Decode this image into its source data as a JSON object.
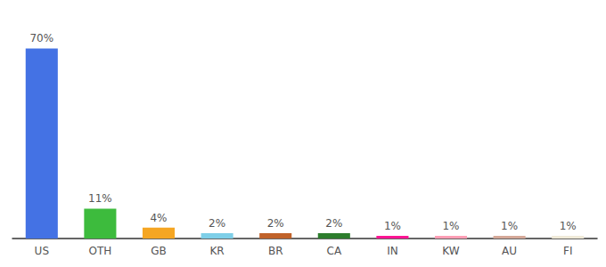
{
  "chart_data": {
    "type": "bar",
    "categories": [
      "US",
      "OTH",
      "GB",
      "KR",
      "BR",
      "CA",
      "IN",
      "KW",
      "AU",
      "FI"
    ],
    "values": [
      70,
      11,
      4,
      2,
      2,
      2,
      1,
      1,
      1,
      1
    ],
    "value_labels": [
      "70%",
      "11%",
      "4%",
      "2%",
      "2%",
      "2%",
      "1%",
      "1%",
      "1%",
      "1%"
    ],
    "colors": [
      "#4472e4",
      "#3dbb3d",
      "#f5a623",
      "#7ecfe8",
      "#c0622a",
      "#2d7d2d",
      "#ff1493",
      "#ff9eb5",
      "#d4a898",
      "#f0ead8"
    ],
    "ylim": [
      0,
      78
    ],
    "data_labels": true,
    "tick_labels": "x",
    "grid": false
  }
}
